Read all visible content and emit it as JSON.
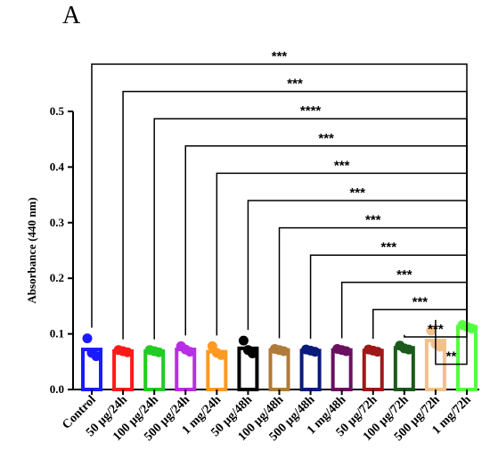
{
  "panel_label": "A",
  "chart_data": {
    "type": "bar",
    "title": "",
    "xlabel": "",
    "ylabel": "Absorbance (440 nm)",
    "ylim": [
      0,
      0.5
    ],
    "yticks": [
      "0.0",
      "0.1",
      "0.2",
      "0.3",
      "0.4",
      "0.5"
    ],
    "categories": [
      "Control",
      "50 µg/24h",
      "100 µg/24h",
      "500 µg/24h",
      "1 mg/24h",
      "50 µg/48h",
      "100 µg/48h",
      "500 µg/48h",
      "1 mg/48h",
      "50 µg/72h",
      "100 µg/72h",
      "500 µg/72h",
      "1 mg/72h"
    ],
    "values": [
      0.072,
      0.069,
      0.069,
      0.072,
      0.068,
      0.074,
      0.071,
      0.07,
      0.071,
      0.07,
      0.075,
      0.088,
      0.113
    ],
    "points": [
      [
        0.092,
        0.066,
        0.06
      ],
      [
        0.071,
        0.069,
        0.067
      ],
      [
        0.071,
        0.069,
        0.067
      ],
      [
        0.078,
        0.072,
        0.068
      ],
      [
        0.078,
        0.066,
        0.062
      ],
      [
        0.088,
        0.071,
        0.065
      ],
      [
        0.073,
        0.071,
        0.069
      ],
      [
        0.072,
        0.07,
        0.068
      ],
      [
        0.073,
        0.071,
        0.069
      ],
      [
        0.072,
        0.07,
        0.068
      ],
      [
        0.079,
        0.074,
        0.072
      ],
      [
        0.106,
        0.082,
        0.077
      ],
      [
        0.116,
        0.113,
        0.11
      ]
    ],
    "colors": [
      "#1a1aff",
      "#ff1a1a",
      "#22cc22",
      "#b82ee6",
      "#ff9922",
      "#000000",
      "#b07a3a",
      "#0a1a7a",
      "#6a1060",
      "#a01818",
      "#1a5a1a",
      "#f2c08a",
      "#55ff40"
    ],
    "comparisons": [
      {
        "from": "Control",
        "to": "1 mg/72h",
        "label": "***"
      },
      {
        "from": "50 µg/24h",
        "to": "1 mg/72h",
        "label": "***"
      },
      {
        "from": "100 µg/24h",
        "to": "1 mg/72h",
        "label": "****"
      },
      {
        "from": "500 µg/24h",
        "to": "1 mg/72h",
        "label": "***"
      },
      {
        "from": "1 mg/24h",
        "to": "1 mg/72h",
        "label": "***"
      },
      {
        "from": "50 µg/48h",
        "to": "1 mg/72h",
        "label": "***"
      },
      {
        "from": "100 µg/48h",
        "to": "1 mg/72h",
        "label": "***"
      },
      {
        "from": "500 µg/48h",
        "to": "1 mg/72h",
        "label": "***"
      },
      {
        "from": "1 mg/48h",
        "to": "1 mg/72h",
        "label": "***"
      },
      {
        "from": "50 µg/72h",
        "to": "1 mg/72h",
        "label": "***"
      },
      {
        "from": "100 µg/72h",
        "to": "1 mg/72h",
        "label": "***"
      },
      {
        "from": "500 µg/72h",
        "to": "1 mg/72h",
        "label": "**"
      }
    ],
    "grid": false,
    "legend": "none"
  }
}
